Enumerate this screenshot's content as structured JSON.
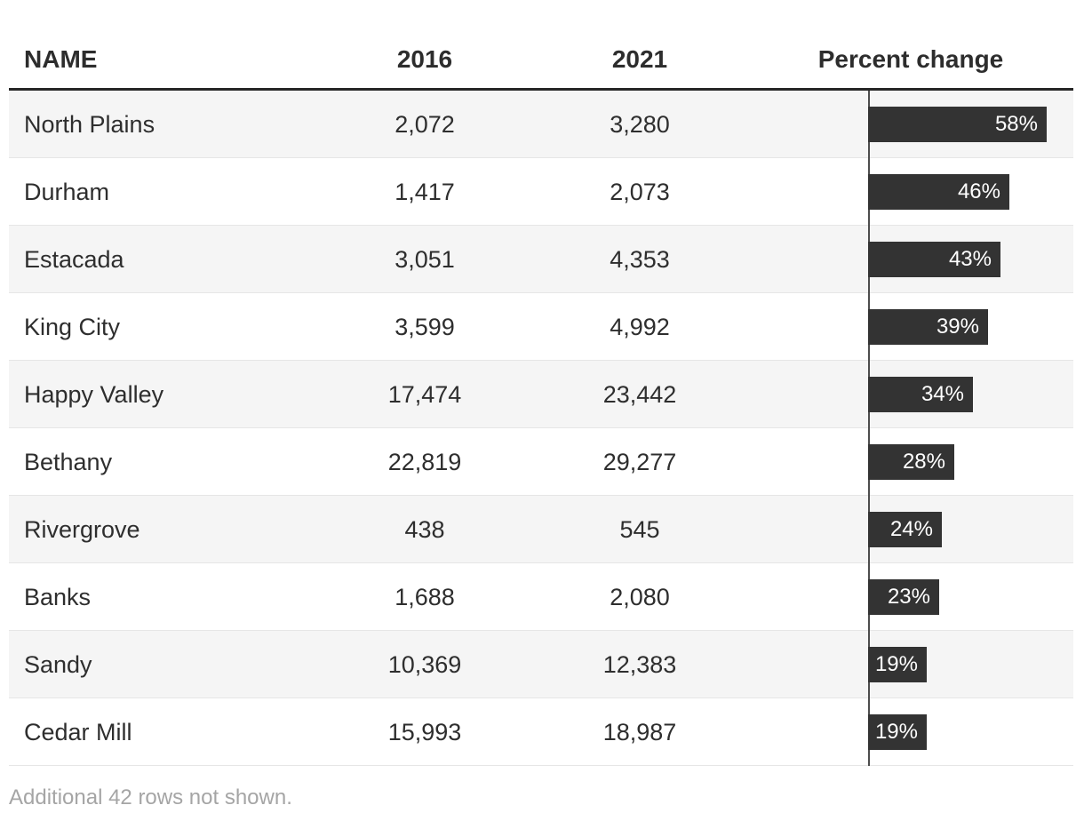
{
  "table": {
    "columns": [
      "NAME",
      "2016",
      "2021",
      "Percent change"
    ],
    "rows": [
      {
        "name": "North Plains",
        "v2016": "2,072",
        "v2021": "3,280",
        "pct": 58,
        "pct_label": "58%"
      },
      {
        "name": "Durham",
        "v2016": "1,417",
        "v2021": "2,073",
        "pct": 46,
        "pct_label": "46%"
      },
      {
        "name": "Estacada",
        "v2016": "3,051",
        "v2021": "4,353",
        "pct": 43,
        "pct_label": "43%"
      },
      {
        "name": "King City",
        "v2016": "3,599",
        "v2021": "4,992",
        "pct": 39,
        "pct_label": "39%"
      },
      {
        "name": "Happy Valley",
        "v2016": "17,474",
        "v2021": "23,442",
        "pct": 34,
        "pct_label": "34%"
      },
      {
        "name": "Bethany",
        "v2016": "22,819",
        "v2021": "29,277",
        "pct": 28,
        "pct_label": "28%"
      },
      {
        "name": "Rivergrove",
        "v2016": "438",
        "v2021": "545",
        "pct": 24,
        "pct_label": "24%"
      },
      {
        "name": "Banks",
        "v2016": "1,688",
        "v2021": "2,080",
        "pct": 23,
        "pct_label": "23%"
      },
      {
        "name": "Sandy",
        "v2016": "10,369",
        "v2021": "12,383",
        "pct": 19,
        "pct_label": "19%"
      },
      {
        "name": "Cedar Mill",
        "v2016": "15,993",
        "v2021": "18,987",
        "pct": 19,
        "pct_label": "19%"
      }
    ]
  },
  "footer": {
    "note": "Additional 42 rows not shown."
  },
  "colors": {
    "bar": "#333333",
    "bar_label": "#ffffff",
    "row_alt": "#f5f5f5",
    "row_border": "#e6e6e6",
    "header_rule": "#262626",
    "axis_line": "#4d4d4d",
    "text": "#2e2e2e",
    "footer_text": "#a5a5a5"
  },
  "chart_data": {
    "type": "table",
    "title": "",
    "columns": [
      "NAME",
      "2016",
      "2021",
      "Percent change"
    ],
    "rows": [
      [
        "North Plains",
        2072,
        3280,
        58
      ],
      [
        "Durham",
        1417,
        2073,
        46
      ],
      [
        "Estacada",
        3051,
        4353,
        43
      ],
      [
        "King City",
        3599,
        4992,
        39
      ],
      [
        "Happy Valley",
        17474,
        23442,
        34
      ],
      [
        "Bethany",
        22819,
        29277,
        28
      ],
      [
        "Rivergrove",
        438,
        545,
        24
      ],
      [
        "Banks",
        1688,
        2080,
        23
      ],
      [
        "Sandy",
        10369,
        12383,
        19
      ],
      [
        "Cedar Mill",
        15993,
        18987,
        19
      ]
    ],
    "bar_column": "Percent change",
    "bar_unit": "%",
    "bar_baseline_at_zero": true,
    "note": "Additional 42 rows not shown.",
    "layout": {
      "alternating_rows": true,
      "bars_inline_labels": true,
      "sorted_by": "Percent change descending"
    }
  }
}
